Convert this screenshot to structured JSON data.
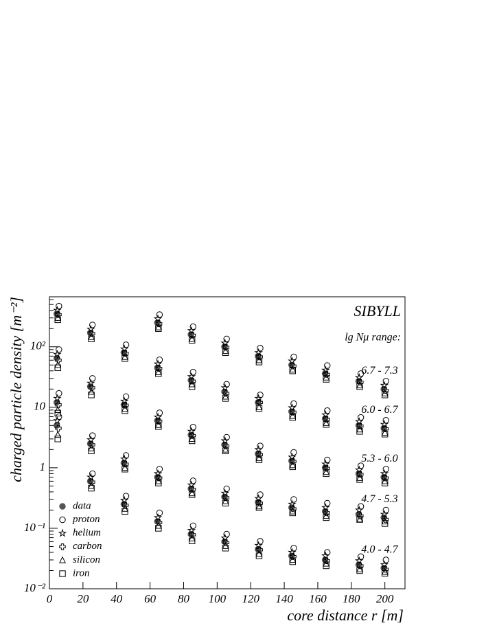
{
  "chart_data": {
    "type": "scatter",
    "title": "SIBYLL",
    "subtitle": "lg Nμ range:",
    "x_label": "core distance r [m]",
    "y_label": "charged particle density [m⁻²]",
    "y_log": true,
    "xlim": [
      0,
      212
    ],
    "ylim": [
      0.01,
      670
    ],
    "xticks": [
      0,
      20,
      40,
      60,
      80,
      100,
      120,
      140,
      160,
      180,
      200
    ],
    "yticks": [
      {
        "value": 0.01,
        "label": "10⁻²"
      },
      {
        "value": 0.1,
        "label": "10⁻¹"
      },
      1,
      10,
      {
        "value": 100,
        "label": "10²"
      }
    ],
    "legend_loc": "lower left",
    "x": [
      5,
      25,
      45,
      65,
      85,
      105,
      125,
      145,
      165,
      185,
      200
    ],
    "series": [
      {
        "name": "data",
        "marker": "circle-filled",
        "color": "#555555"
      },
      {
        "name": "proton",
        "marker": "circle-open",
        "color": "#000000"
      },
      {
        "name": "helium",
        "marker": "star",
        "color": "#000000"
      },
      {
        "name": "carbon",
        "marker": "cross",
        "color": "#000000"
      },
      {
        "name": "silicon",
        "marker": "triangle",
        "color": "#000000"
      },
      {
        "name": "iron",
        "marker": "square",
        "color": "#000000"
      }
    ],
    "groups": [
      {
        "label": "6.7 - 7.3",
        "series": [
          {
            "values": [
              null,
              null,
              null,
              250,
              160,
              100,
              70,
              50,
              36,
              27,
              20
            ]
          },
          {
            "values": [
              null,
              null,
              null,
              340,
              215,
              135,
              95,
              68,
              49,
              36,
              27
            ]
          },
          {
            "values": [
              null,
              null,
              null,
              290,
              185,
              115,
              80,
              58,
              41,
              31,
              23
            ]
          },
          {
            "values": [
              null,
              null,
              null,
              240,
              155,
              98,
              68,
              48,
              35,
              26,
              19
            ]
          },
          {
            "values": [
              null,
              null,
              null,
              210,
              135,
              85,
              60,
              42,
              31,
              23,
              17
            ]
          },
          {
            "values": [
              null,
              null,
              null,
              200,
              128,
              80,
              56,
              40,
              29,
              22,
              16
            ]
          }
        ]
      },
      {
        "label": "6.0 - 6.7",
        "series": [
          {
            "values": [
              350,
              170,
              80,
              45,
              28,
              18,
              12,
              8.5,
              6.5,
              5,
              4.5
            ]
          },
          {
            "values": [
              470,
              230,
              108,
              61,
              38,
              24,
              16,
              11.5,
              8.8,
              6.8,
              6.1
            ]
          },
          {
            "values": [
              400,
              195,
              92,
              52,
              32,
              21,
              14,
              9.8,
              7.5,
              5.8,
              5.2
            ]
          },
          {
            "values": [
              340,
              165,
              78,
              44,
              27,
              17,
              12,
              8.3,
              6.3,
              4.9,
              4.4
            ]
          },
          {
            "values": [
              300,
              145,
              68,
              38,
              24,
              15,
              10,
              7.2,
              5.5,
              4.3,
              3.8
            ]
          },
          {
            "values": [
              280,
              135,
              64,
              36,
              22,
              14,
              9.6,
              6.8,
              5.2,
              4,
              3.6
            ]
          }
        ]
      },
      {
        "label": "5.3 - 6.0",
        "series": [
          {
            "values": [
              65,
              22,
              11,
              6,
              3.5,
              2.4,
              1.7,
              1.3,
              1.0,
              0.8,
              0.7
            ]
          },
          {
            "values": [
              90,
              30,
              15,
              8.1,
              4.7,
              3.2,
              2.3,
              1.8,
              1.35,
              1.08,
              0.95
            ]
          },
          {
            "values": [
              75,
              25,
              12.6,
              6.9,
              4,
              2.8,
              2,
              1.5,
              1.15,
              0.92,
              0.8
            ]
          },
          {
            "values": [
              60,
              21,
              10.8,
              5.9,
              3.4,
              2.3,
              1.65,
              1.27,
              0.98,
              0.78,
              0.68
            ]
          },
          {
            "values": [
              50,
              18,
              9.4,
              5.1,
              3,
              2,
              1.45,
              1.1,
              0.85,
              0.68,
              0.6
            ]
          },
          {
            "values": [
              45,
              16,
              8.8,
              4.8,
              2.8,
              1.9,
              1.36,
              1.04,
              0.8,
              0.64,
              0.56
            ]
          }
        ]
      },
      {
        "label": "4.7 - 5.3",
        "series": [
          {
            "values": [
              12,
              2.5,
              1.2,
              0.7,
              0.45,
              0.33,
              0.27,
              0.22,
              0.19,
              0.17,
              0.15
            ]
          },
          {
            "values": [
              17,
              3.4,
              1.6,
              0.95,
              0.61,
              0.45,
              0.36,
              0.3,
              0.26,
              0.23,
              0.2
            ]
          },
          {
            "values": [
              14,
              2.9,
              1.4,
              0.8,
              0.52,
              0.38,
              0.31,
              0.25,
              0.22,
              0.2,
              0.17
            ]
          },
          {
            "values": [
              11,
              2.4,
              1.15,
              0.68,
              0.44,
              0.32,
              0.26,
              0.21,
              0.18,
              0.16,
              0.14
            ]
          },
          {
            "values": [
              9,
              2.1,
              1.0,
              0.6,
              0.38,
              0.28,
              0.23,
              0.19,
              0.16,
              0.14,
              0.13
            ]
          },
          {
            "values": [
              8,
              1.9,
              0.95,
              0.56,
              0.36,
              0.26,
              0.22,
              0.18,
              0.15,
              0.14,
              0.12
            ]
          }
        ]
      },
      {
        "label": "4.0 - 4.7",
        "series": [
          {
            "values": [
              5,
              0.6,
              0.25,
              0.13,
              0.08,
              0.06,
              0.045,
              0.035,
              0.03,
              0.025,
              0.022
            ]
          },
          {
            "values": [
              7,
              0.8,
              0.34,
              0.18,
              0.11,
              0.08,
              0.061,
              0.047,
              0.04,
              0.034,
              0.03
            ]
          },
          {
            "values": [
              6,
              0.7,
              0.29,
              0.15,
              0.092,
              0.069,
              0.052,
              0.04,
              0.035,
              0.029,
              0.025
            ]
          },
          {
            "values": [
              4.5,
              0.58,
              0.24,
              0.125,
              0.078,
              0.058,
              0.044,
              0.034,
              0.029,
              0.024,
              0.021
            ]
          },
          {
            "values": [
              3.5,
              0.5,
              0.21,
              0.11,
              0.068,
              0.051,
              0.038,
              0.03,
              0.026,
              0.021,
              0.019
            ]
          },
          {
            "values": [
              3,
              0.46,
              0.19,
              0.1,
              0.062,
              0.047,
              0.035,
              0.028,
              0.024,
              0.02,
              0.018
            ]
          }
        ]
      }
    ]
  }
}
